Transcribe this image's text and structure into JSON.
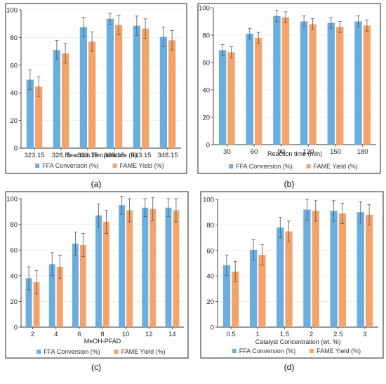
{
  "chart_data": [
    {
      "type": "bar",
      "panel_label": "(a)",
      "categories": [
        "323.15",
        "328. 5",
        "333.15",
        "338.15",
        "343.15",
        "348.15"
      ],
      "xlabel": "Reaction Temperature (K)",
      "ylabel": "",
      "ylim": [
        0,
        100
      ],
      "yticks": [
        0,
        20,
        40,
        60,
        80,
        100
      ],
      "legend_position": "bottom",
      "series": [
        {
          "name": "FFA Conversion (%)",
          "values": [
            49.5,
            71,
            87.5,
            93.5,
            88.5,
            80.5
          ],
          "errors": [
            7,
            7,
            7,
            4,
            7,
            7
          ]
        },
        {
          "name": "FAME Yield (%)",
          "values": [
            44.5,
            68.5,
            77,
            89,
            86.5,
            78
          ],
          "errors": [
            7,
            7,
            7,
            7,
            7,
            7
          ]
        }
      ]
    },
    {
      "type": "bar",
      "panel_label": "(b)",
      "categories": [
        "30",
        "60",
        "90",
        "120",
        "150",
        "180"
      ],
      "xlabel": "Reaction time (min)",
      "ylabel": "",
      "ylim": [
        0,
        100
      ],
      "yticks": [
        0,
        20,
        40,
        60,
        80,
        100
      ],
      "legend_position": "bottom",
      "series": [
        {
          "name": "FFA Conversion (%)",
          "values": [
            69,
            81,
            94,
            90,
            89,
            90
          ],
          "errors": [
            4,
            4,
            4,
            4,
            4,
            4
          ]
        },
        {
          "name": "FAME Yield (%)",
          "values": [
            67.5,
            78,
            93,
            88,
            86,
            87
          ],
          "errors": [
            4,
            4,
            4,
            4,
            4,
            4
          ]
        }
      ]
    },
    {
      "type": "bar",
      "panel_label": "(c)",
      "categories": [
        "2",
        "4",
        "6",
        "8",
        "10",
        "12",
        "14"
      ],
      "xlabel": "MeOH-PFAD",
      "ylabel": "",
      "ylim": [
        0,
        100
      ],
      "yticks": [
        0,
        20,
        40,
        60,
        80,
        100
      ],
      "legend_position": "bottom",
      "series": [
        {
          "name": "FFA Conversion (%)",
          "values": [
            38,
            49,
            65,
            87,
            95,
            93,
            93
          ],
          "errors": [
            9,
            9,
            9,
            9,
            7,
            7,
            7
          ]
        },
        {
          "name": "FAME Yield (%)",
          "values": [
            35,
            47,
            64,
            82,
            91,
            92,
            91
          ],
          "errors": [
            9,
            9,
            9,
            9,
            9,
            9,
            9
          ]
        }
      ]
    },
    {
      "type": "bar",
      "panel_label": "(d)",
      "categories": [
        "0.5",
        "1",
        "1.5",
        "2",
        "2.5",
        "3"
      ],
      "xlabel": "Catalyst Concentration (wt. %)",
      "ylabel": "",
      "ylim": [
        0,
        100
      ],
      "yticks": [
        0,
        20,
        40,
        60,
        80,
        100
      ],
      "legend_position": "bottom",
      "series": [
        {
          "name": "FFA Conversion (%)",
          "values": [
            48.5,
            60.5,
            78,
            92,
            91,
            90
          ],
          "errors": [
            8,
            8,
            8,
            8,
            8,
            8
          ]
        },
        {
          "name": "FAME Yield (%)",
          "values": [
            43.5,
            56.5,
            75,
            91,
            89,
            88
          ],
          "errors": [
            8,
            8,
            8,
            8,
            8,
            8
          ]
        }
      ]
    }
  ],
  "colors": {
    "ffa": "#6aaee0",
    "fame": "#f4a46b",
    "error_bar": "#555555",
    "frame": "#222222"
  }
}
